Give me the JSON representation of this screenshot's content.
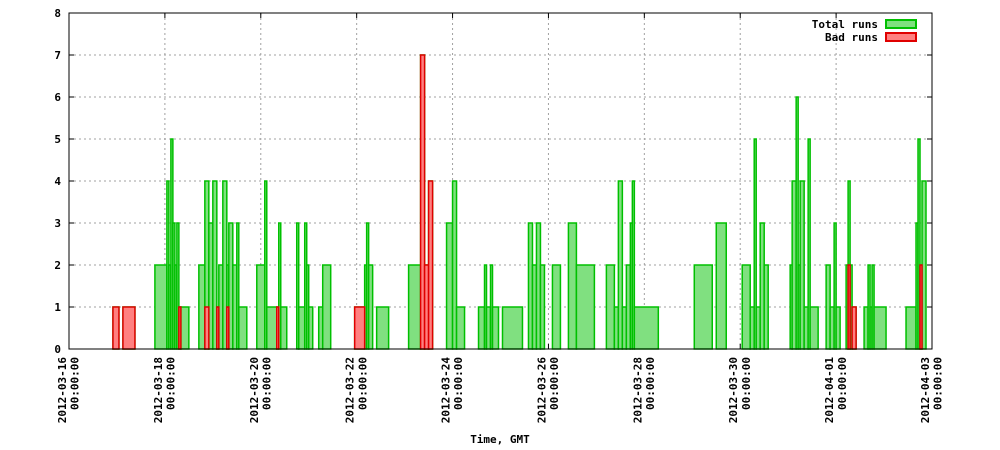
{
  "chart_data": {
    "type": "histogram",
    "xlabel": "Time, GMT",
    "grid": true,
    "legend": "top-right",
    "ylim": [
      0,
      8
    ],
    "yticks": [
      0,
      1,
      2,
      3,
      4,
      5,
      6,
      7,
      8
    ],
    "xlim": [
      "2012-03-16 00:00:00",
      "2012-04-03 00:00:00"
    ],
    "xticks": [
      "2012-03-16 00:00:00",
      "2012-03-18 00:00:00",
      "2012-03-20 00:00:00",
      "2012-03-22 00:00:00",
      "2012-03-24 00:00:00",
      "2012-03-26 00:00:00",
      "2012-03-28 00:00:00",
      "2012-03-30 00:00:00",
      "2012-04-01 00:00:00",
      "2012-04-03 00:00:00"
    ],
    "bins": [
      "2012-03-16 00:00:00",
      "2012-03-16 22:00:00",
      "2012-03-17 01:00:00",
      "2012-03-17 03:00:00",
      "2012-03-17 09:00:00",
      "2012-03-17 19:00:00",
      "2012-03-18 01:00:00",
      "2012-03-18 02:00:00",
      "2012-03-18 03:00:00",
      "2012-03-18 04:00:00",
      "2012-03-18 05:00:00",
      "2012-03-18 06:00:00",
      "2012-03-18 07:00:00",
      "2012-03-18 08:00:00",
      "2012-03-18 12:00:00",
      "2012-03-18 17:00:00",
      "2012-03-18 20:00:00",
      "2012-03-18 22:00:00",
      "2012-03-19 00:00:00",
      "2012-03-19 02:00:00",
      "2012-03-19 03:00:00",
      "2012-03-19 05:00:00",
      "2012-03-19 07:00:00",
      "2012-03-19 08:00:00",
      "2012-03-19 10:00:00",
      "2012-03-19 12:00:00",
      "2012-03-19 13:00:00",
      "2012-03-19 17:00:00",
      "2012-03-19 22:00:00",
      "2012-03-20 02:00:00",
      "2012-03-20 03:00:00",
      "2012-03-20 08:00:00",
      "2012-03-20 09:00:00",
      "2012-03-20 10:00:00",
      "2012-03-20 13:00:00",
      "2012-03-20 18:00:00",
      "2012-03-20 19:00:00",
      "2012-03-20 22:00:00",
      "2012-03-20 23:00:00",
      "2012-03-21 00:00:00",
      "2012-03-21 02:00:00",
      "2012-03-21 05:00:00",
      "2012-03-21 07:00:00",
      "2012-03-21 11:00:00",
      "2012-03-21 16:00:00",
      "2012-03-21 23:00:00",
      "2012-03-22 04:00:00",
      "2012-03-22 05:00:00",
      "2012-03-22 06:00:00",
      "2012-03-22 08:00:00",
      "2012-03-22 10:00:00",
      "2012-03-22 16:00:00",
      "2012-03-23 02:00:00",
      "2012-03-23 08:00:00",
      "2012-03-23 10:00:00",
      "2012-03-23 12:00:00",
      "2012-03-23 14:00:00",
      "2012-03-23 21:00:00",
      "2012-03-24 00:00:00",
      "2012-03-24 02:00:00",
      "2012-03-24 06:00:00",
      "2012-03-24 13:00:00",
      "2012-03-24 16:00:00",
      "2012-03-24 17:00:00",
      "2012-03-24 19:00:00",
      "2012-03-24 20:00:00",
      "2012-03-24 23:00:00",
      "2012-03-25 01:00:00",
      "2012-03-25 11:00:00",
      "2012-03-25 14:00:00",
      "2012-03-25 16:00:00",
      "2012-03-25 18:00:00",
      "2012-03-25 20:00:00",
      "2012-03-25 22:00:00",
      "2012-03-26 02:00:00",
      "2012-03-26 06:00:00",
      "2012-03-26 10:00:00",
      "2012-03-26 14:00:00",
      "2012-03-26 23:00:00",
      "2012-03-27 05:00:00",
      "2012-03-27 09:00:00",
      "2012-03-27 11:00:00",
      "2012-03-27 13:00:00",
      "2012-03-27 15:00:00",
      "2012-03-27 17:00:00",
      "2012-03-27 18:00:00",
      "2012-03-27 19:00:00",
      "2012-03-28 07:00:00",
      "2012-03-29 01:00:00",
      "2012-03-29 10:00:00",
      "2012-03-29 12:00:00",
      "2012-03-29 17:00:00",
      "2012-03-30 01:00:00",
      "2012-03-30 05:00:00",
      "2012-03-30 07:00:00",
      "2012-03-30 08:00:00",
      "2012-03-30 10:00:00",
      "2012-03-30 12:00:00",
      "2012-03-30 14:00:00",
      "2012-03-31 01:00:00",
      "2012-03-31 02:00:00",
      "2012-03-31 04:00:00",
      "2012-03-31 05:00:00",
      "2012-03-31 06:00:00",
      "2012-03-31 08:00:00",
      "2012-03-31 10:00:00",
      "2012-03-31 11:00:00",
      "2012-03-31 15:00:00",
      "2012-03-31 19:00:00",
      "2012-03-31 21:00:00",
      "2012-03-31 23:00:00",
      "2012-04-01 00:00:00",
      "2012-04-01 02:00:00",
      "2012-04-01 05:00:00",
      "2012-04-01 06:00:00",
      "2012-04-01 07:00:00",
      "2012-04-01 08:00:00",
      "2012-04-01 10:00:00",
      "2012-04-01 14:00:00",
      "2012-04-01 16:00:00",
      "2012-04-01 17:00:00",
      "2012-04-01 18:00:00",
      "2012-04-01 19:00:00",
      "2012-04-02 01:00:00",
      "2012-04-02 11:00:00",
      "2012-04-02 16:00:00",
      "2012-04-02 17:00:00",
      "2012-04-02 18:00:00",
      "2012-04-02 19:00:00",
      "2012-04-02 21:00:00",
      "2012-04-03 00:00:00"
    ],
    "series": [
      {
        "name": "Total runs",
        "color": "#00c000",
        "fill": "#80e080",
        "values": [
          0,
          1,
          0,
          1,
          0,
          2,
          4,
          2,
          5,
          3,
          2,
          3,
          1,
          1,
          0,
          2,
          4,
          3,
          4,
          1,
          2,
          4,
          2,
          3,
          2,
          3,
          1,
          0,
          2,
          4,
          1,
          1,
          3,
          1,
          0,
          3,
          1,
          3,
          2,
          1,
          0,
          1,
          2,
          0,
          0,
          1,
          2,
          3,
          2,
          0,
          1,
          0,
          2,
          7,
          2,
          4,
          0,
          3,
          4,
          1,
          0,
          1,
          2,
          1,
          2,
          1,
          0,
          1,
          0,
          3,
          2,
          3,
          2,
          0,
          2,
          0,
          3,
          2,
          0,
          2,
          1,
          4,
          1,
          2,
          3,
          4,
          1,
          0,
          2,
          0,
          3,
          0,
          2,
          1,
          5,
          1,
          3,
          2,
          0,
          2,
          4,
          6,
          2,
          4,
          1,
          5,
          1,
          0,
          2,
          1,
          3,
          1,
          0,
          2,
          4,
          2,
          1,
          0,
          1,
          2,
          1,
          2,
          1,
          0,
          1,
          3,
          5,
          2,
          4,
          0
        ]
      },
      {
        "name": "Bad runs",
        "color": "#e00000",
        "fill": "#ff8080",
        "values": [
          0,
          1,
          0,
          1,
          0,
          0,
          0,
          0,
          0,
          0,
          0,
          0,
          1,
          0,
          0,
          0,
          1,
          0,
          0,
          1,
          0,
          0,
          1,
          0,
          0,
          0,
          0,
          0,
          0,
          0,
          0,
          1,
          0,
          0,
          0,
          0,
          0,
          0,
          0,
          0,
          0,
          0,
          0,
          0,
          0,
          1,
          0,
          0,
          0,
          0,
          0,
          0,
          0,
          7,
          2,
          4,
          0,
          0,
          0,
          0,
          0,
          0,
          0,
          0,
          0,
          0,
          0,
          0,
          0,
          0,
          0,
          0,
          0,
          0,
          0,
          0,
          0,
          0,
          0,
          0,
          0,
          0,
          0,
          0,
          0,
          0,
          0,
          0,
          0,
          0,
          0,
          0,
          0,
          0,
          0,
          0,
          0,
          0,
          0,
          0,
          0,
          0,
          0,
          0,
          0,
          0,
          0,
          0,
          0,
          0,
          0,
          0,
          0,
          0,
          2,
          0,
          1,
          0,
          0,
          0,
          0,
          0,
          0,
          0,
          0,
          0,
          0,
          2,
          0,
          0
        ]
      }
    ]
  }
}
